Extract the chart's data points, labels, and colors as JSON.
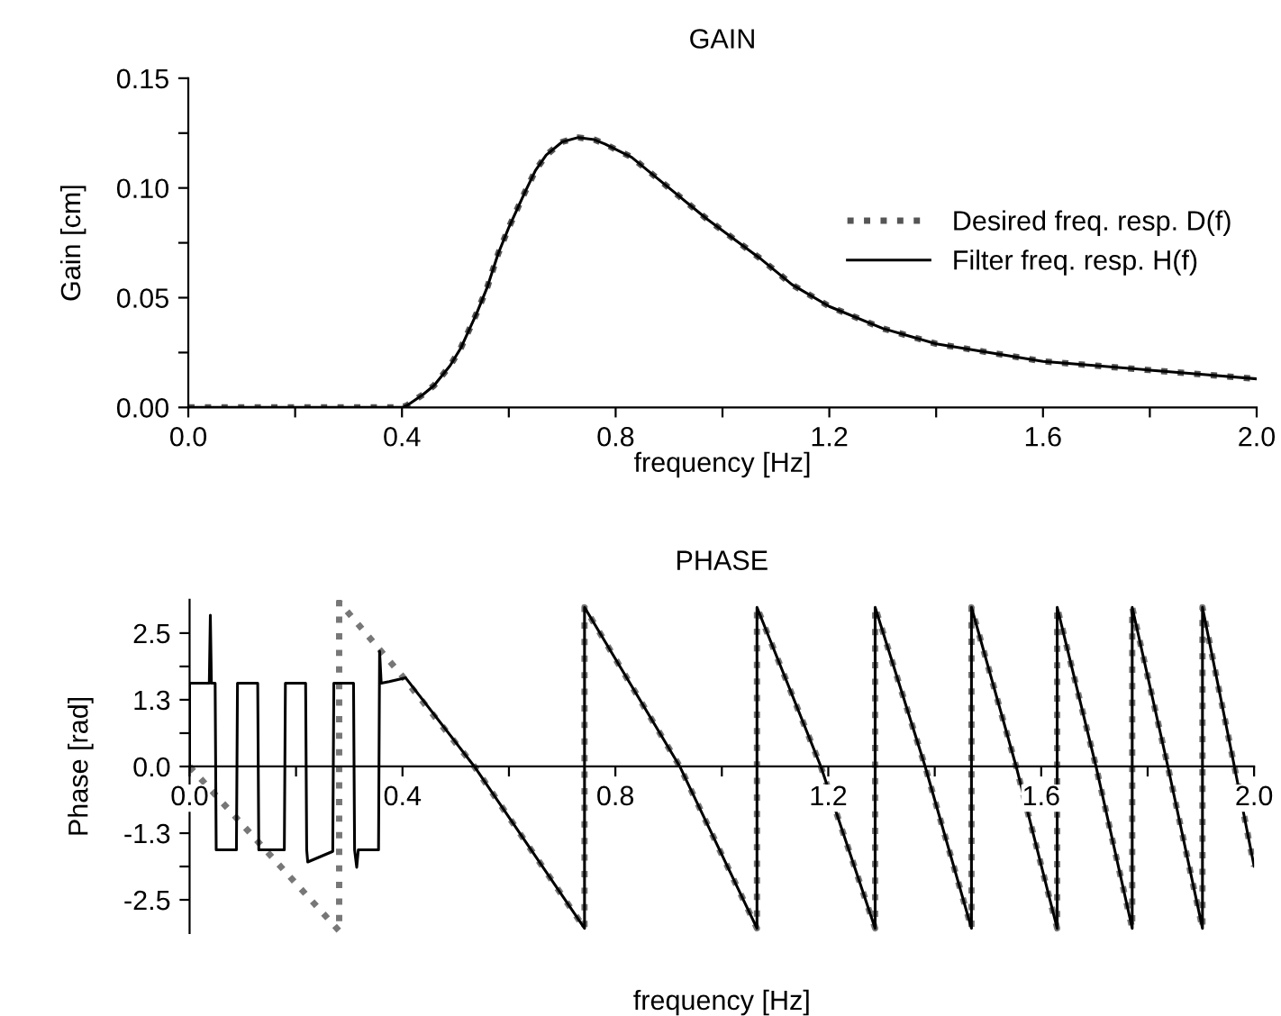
{
  "chart_data": [
    {
      "type": "line",
      "title": "GAIN",
      "xlabel": "frequency [Hz]",
      "ylabel": "Gain [cm]",
      "xlim": [
        0,
        2.0
      ],
      "ylim": [
        0,
        0.15
      ],
      "xticks": [
        {
          "value": 0,
          "label": "0.0"
        },
        {
          "value": 0.2,
          "label": null
        },
        {
          "value": 0.4,
          "label": "0.4"
        },
        {
          "value": 0.6,
          "label": null
        },
        {
          "value": 0.8,
          "label": "0.8"
        },
        {
          "value": 1.0,
          "label": null
        },
        {
          "value": 1.2,
          "label": "1.2"
        },
        {
          "value": 1.4,
          "label": null
        },
        {
          "value": 1.6,
          "label": "1.6"
        },
        {
          "value": 1.8,
          "label": null
        },
        {
          "value": 2.0,
          "label": "2.0"
        }
      ],
      "yticks": [
        {
          "value": 0,
          "label": "0.00"
        },
        {
          "value": 0.025,
          "label": null
        },
        {
          "value": 0.05,
          "label": "0.05"
        },
        {
          "value": 0.075,
          "label": null
        },
        {
          "value": 0.1,
          "label": "0.10"
        },
        {
          "value": 0.125,
          "label": null
        },
        {
          "value": 0.15,
          "label": "0.15"
        }
      ],
      "x": [
        0,
        0.2,
        0.4,
        0.41,
        0.44,
        0.46,
        0.49,
        0.51,
        0.54,
        0.56,
        0.58,
        0.6,
        0.63,
        0.65,
        0.67,
        0.7,
        0.73,
        0.76,
        0.78,
        0.83,
        0.87,
        0.92,
        0.97,
        1.02,
        1.07,
        1.13,
        1.2,
        1.3,
        1.4,
        1.5,
        1.6,
        1.7,
        1.8,
        1.9,
        2.0
      ],
      "legend": "right",
      "grid": false,
      "series": [
        {
          "name": "Desired freq. resp. D(f)",
          "color": "#555555",
          "line_style": "dotted",
          "values": [
            0,
            0,
            0,
            0.001,
            0.006,
            0.01,
            0.019,
            0.027,
            0.043,
            0.055,
            0.07,
            0.082,
            0.098,
            0.108,
            0.115,
            0.121,
            0.123,
            0.122,
            0.12,
            0.114,
            0.106,
            0.096,
            0.086,
            0.077,
            0.068,
            0.056,
            0.046,
            0.036,
            0.029,
            0.025,
            0.021,
            0.019,
            0.017,
            0.015,
            0.013
          ]
        },
        {
          "name": "Filter freq. resp. H(f)",
          "color": "#000000",
          "line_style": "solid",
          "values": [
            0,
            0,
            0,
            0.001,
            0.006,
            0.01,
            0.019,
            0.027,
            0.043,
            0.055,
            0.07,
            0.082,
            0.098,
            0.108,
            0.115,
            0.121,
            0.123,
            0.122,
            0.12,
            0.114,
            0.106,
            0.096,
            0.086,
            0.077,
            0.068,
            0.056,
            0.046,
            0.036,
            0.029,
            0.025,
            0.021,
            0.019,
            0.017,
            0.015,
            0.013
          ]
        }
      ]
    },
    {
      "type": "line",
      "title": "PHASE",
      "xlabel": "frequency [Hz]",
      "ylabel": "Phase [rad]",
      "xlim": [
        0,
        2.0
      ],
      "ylim": [
        -3.14,
        3.14
      ],
      "xticks": [
        {
          "value": 0,
          "label": "0.0"
        },
        {
          "value": 0.2,
          "label": null
        },
        {
          "value": 0.4,
          "label": "0.4"
        },
        {
          "value": 0.6,
          "label": null
        },
        {
          "value": 0.8,
          "label": "0.8"
        },
        {
          "value": 1.0,
          "label": null
        },
        {
          "value": 1.2,
          "label": "1.2"
        },
        {
          "value": 1.4,
          "label": null
        },
        {
          "value": 1.6,
          "label": "1.6"
        },
        {
          "value": 1.8,
          "label": null
        },
        {
          "value": 2.0,
          "label": "2.0"
        }
      ],
      "yticks": [
        {
          "value": -2.513,
          "label": "-2.5"
        },
        {
          "value": -1.885,
          "label": null
        },
        {
          "value": -1.257,
          "label": "-1.3"
        },
        {
          "value": -0.628,
          "label": null
        },
        {
          "value": 0,
          "label": "0.0"
        },
        {
          "value": 0.628,
          "label": null
        },
        {
          "value": 1.257,
          "label": "1.3"
        },
        {
          "value": 1.885,
          "label": null
        },
        {
          "value": 2.513,
          "label": "2.5"
        }
      ],
      "grid": false,
      "legend": false,
      "series": [
        {
          "color": "#777777",
          "line_style": "dotted",
          "x": [
            0,
            0.281,
            0.281,
            0.4,
            0.535,
            0.742,
            0.742,
            0.921,
            1.066,
            1.066,
            1.186,
            1.288,
            1.288,
            1.382,
            1.469,
            1.469,
            1.553,
            1.63,
            1.63,
            1.703,
            1.771,
            1.771,
            1.838,
            1.903,
            1.903,
            1.963,
            2.0
          ],
          "values": [
            0,
            -3.1,
            3.1,
            1.7,
            0,
            -3.05,
            3.0,
            0,
            -3.05,
            3.0,
            0,
            -3.05,
            3.0,
            0,
            -3.05,
            3.0,
            0,
            -3.05,
            3.0,
            0,
            -3.05,
            3.0,
            0,
            -3.05,
            3.0,
            0,
            -1.88
          ]
        },
        {
          "color": "#000000",
          "line_style": "solid",
          "x": [
            0,
            0,
            0.037,
            0.039,
            0.041,
            0.048,
            0.05,
            0.088,
            0.09,
            0.128,
            0.13,
            0.178,
            0.18,
            0.218,
            0.22,
            0.222,
            0.269,
            0.271,
            0.308,
            0.31,
            0.314,
            0.317,
            0.355,
            0.357,
            0.36,
            0.375,
            0.406,
            0.535,
            0.742,
            0.742,
            0.921,
            1.066,
            1.066,
            1.186,
            1.288,
            1.288,
            1.382,
            1.469,
            1.469,
            1.553,
            1.63,
            1.63,
            1.703,
            1.771,
            1.771,
            1.838,
            1.903,
            1.903,
            1.963,
            2.0
          ],
          "values": [
            0,
            1.57,
            1.57,
            2.85,
            1.57,
            1.57,
            -1.57,
            -1.57,
            1.57,
            1.57,
            -1.57,
            -1.57,
            1.57,
            1.57,
            -1.57,
            -1.8,
            -1.6,
            1.57,
            1.57,
            -1.57,
            -1.9,
            -1.57,
            -1.57,
            2.17,
            1.57,
            1.6,
            1.67,
            0,
            -3.05,
            3.0,
            0,
            -3.05,
            3.0,
            0,
            -3.05,
            3.0,
            0,
            -3.05,
            3.0,
            0,
            -3.05,
            3.0,
            0,
            -3.05,
            3.0,
            0,
            -3.05,
            3.0,
            0,
            -1.88
          ]
        }
      ]
    }
  ]
}
